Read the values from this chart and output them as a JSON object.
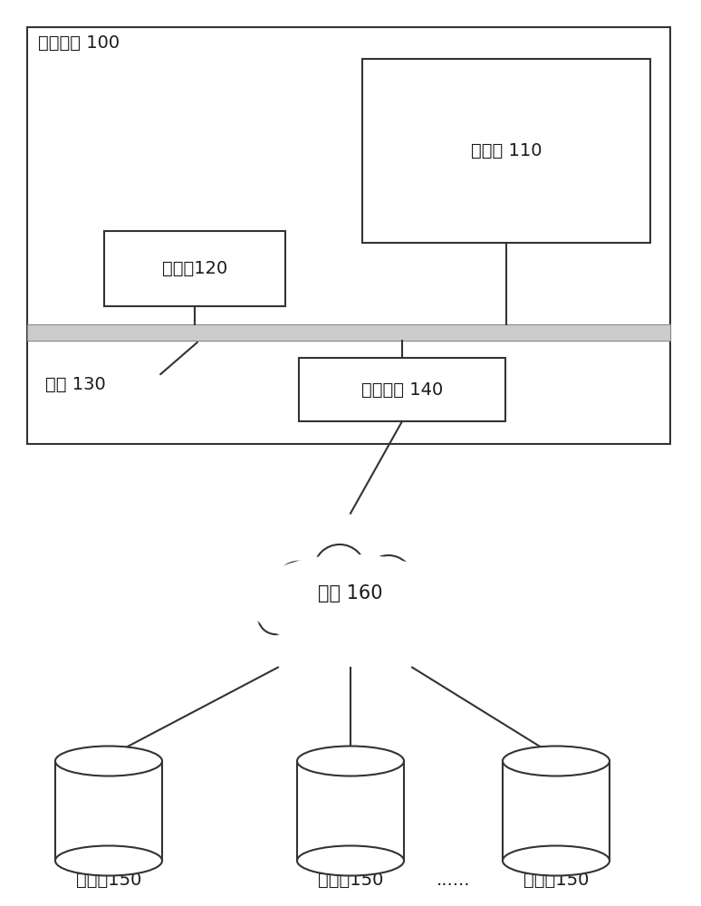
{
  "bg_color": "#ffffff",
  "text_color": "#1a1a1a",
  "edge_color": "#333333",
  "title_device": "电子设备 100",
  "label_memory": "存储器 110",
  "label_processor": "处理器120",
  "label_bus": "总线 130",
  "label_access": "接入设备 140",
  "label_network": "网络 160",
  "label_db": "数据库150",
  "label_dots": "......",
  "font_size": 14
}
